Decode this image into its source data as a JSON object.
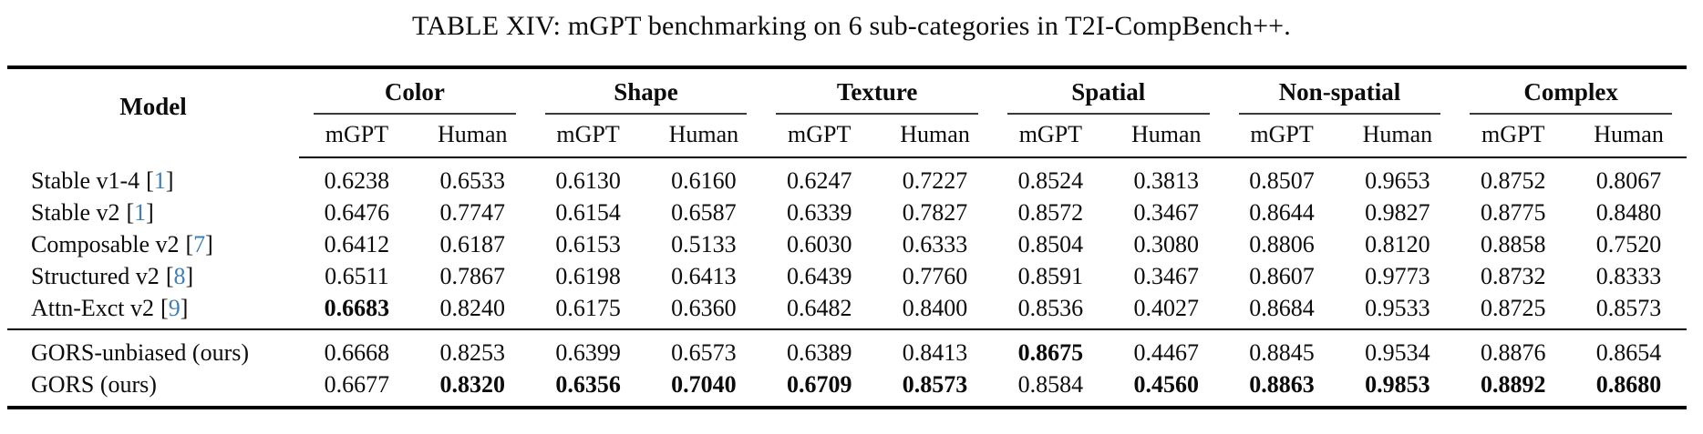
{
  "title": "TABLE XIV: mGPT benchmarking on 6 sub-categories in T2I-CompBench++.",
  "symbols": {
    "open_bracket": "[",
    "close_bracket": "]"
  },
  "colors": {
    "citation_blue": "#3c7fb8"
  },
  "table": {
    "model_header": "Model",
    "groups": [
      "Color",
      "Shape",
      "Texture",
      "Spatial",
      "Non-spatial",
      "Complex"
    ],
    "sub_headers": [
      "mGPT",
      "Human"
    ],
    "rows": [
      {
        "model": "Stable v1-4",
        "cite": "1",
        "values": [
          "0.6238",
          "0.6533",
          "0.6130",
          "0.6160",
          "0.6247",
          "0.7227",
          "0.8524",
          "0.3813",
          "0.8507",
          "0.9653",
          "0.8752",
          "0.8067"
        ]
      },
      {
        "model": "Stable v2",
        "cite": "1",
        "values": [
          "0.6476",
          "0.7747",
          "0.6154",
          "0.6587",
          "0.6339",
          "0.7827",
          "0.8572",
          "0.3467",
          "0.8644",
          "0.9827",
          "0.8775",
          "0.8480"
        ]
      },
      {
        "model": "Composable v2",
        "cite": "7",
        "values": [
          "0.6412",
          "0.6187",
          "0.6153",
          "0.5133",
          "0.6030",
          "0.6333",
          "0.8504",
          "0.3080",
          "0.8806",
          "0.8120",
          "0.8858",
          "0.7520"
        ]
      },
      {
        "model": "Structured v2",
        "cite": "8",
        "values": [
          "0.6511",
          "0.7867",
          "0.6198",
          "0.6413",
          "0.6439",
          "0.7760",
          "0.8591",
          "0.3467",
          "0.8607",
          "0.9773",
          "0.8732",
          "0.8333"
        ]
      },
      {
        "model": "Attn-Exct v2",
        "cite": "9",
        "values": [
          "0.6683",
          "0.8240",
          "0.6175",
          "0.6360",
          "0.6482",
          "0.8400",
          "0.8536",
          "0.4027",
          "0.8684",
          "0.9533",
          "0.8725",
          "0.8573"
        ]
      },
      {
        "model": "GORS-unbiased (ours)",
        "cite": null,
        "values": [
          "0.6668",
          "0.8253",
          "0.6399",
          "0.6573",
          "0.6389",
          "0.8413",
          "0.8675",
          "0.4467",
          "0.8845",
          "0.9534",
          "0.8876",
          "0.8654"
        ]
      },
      {
        "model": "GORS (ours)",
        "cite": null,
        "values": [
          "0.6677",
          "0.8320",
          "0.6356",
          "0.7040",
          "0.6709",
          "0.8573",
          "0.8584",
          "0.4560",
          "0.8863",
          "0.9853",
          "0.8892",
          "0.8680"
        ]
      }
    ]
  }
}
